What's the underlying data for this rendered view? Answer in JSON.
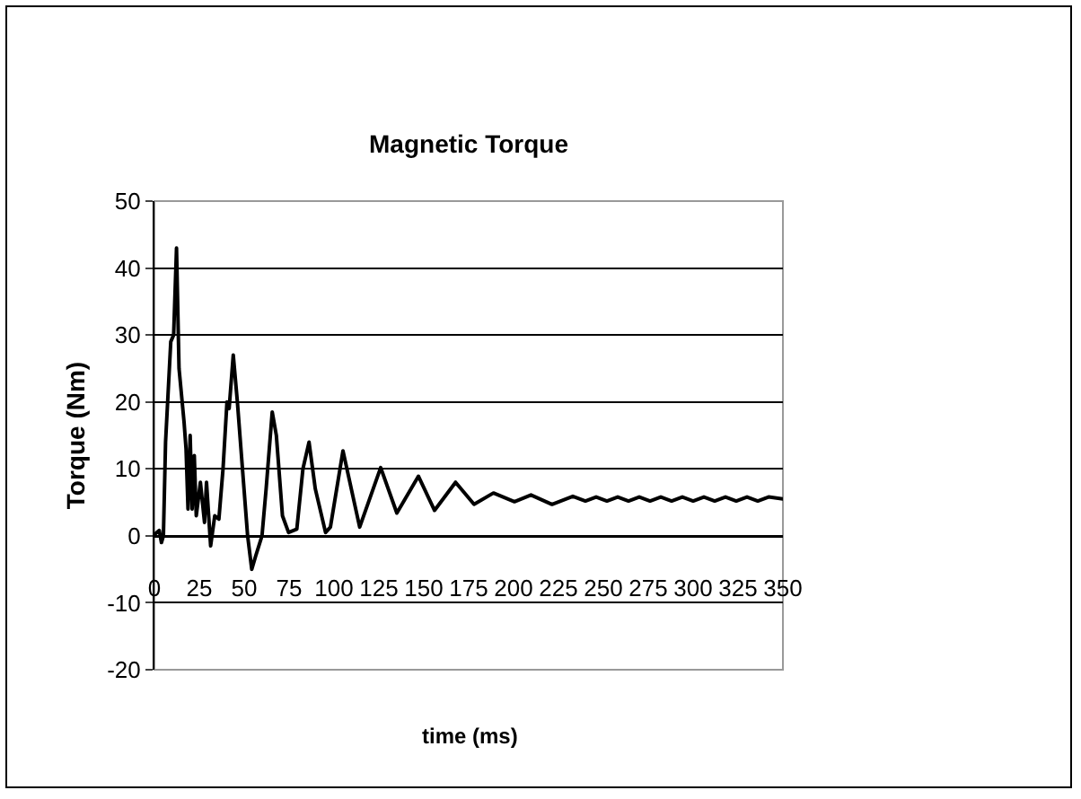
{
  "chart_data": {
    "type": "line",
    "title": "Magnetic Torque",
    "xlabel": "time (ms)",
    "ylabel": "Torque (Nm)",
    "xlim": [
      0,
      350
    ],
    "xticks": [
      0,
      25,
      50,
      75,
      100,
      125,
      150,
      175,
      200,
      225,
      250,
      275,
      300,
      325,
      350
    ],
    "ylim": [
      -20,
      50
    ],
    "yticks": [
      -20,
      -10,
      0,
      10,
      20,
      30,
      40,
      50
    ],
    "grid": "y",
    "marker": "none",
    "line_style": "solid",
    "series": [
      {
        "color": "#000000",
        "x": [
          0,
          2.7,
          3.9,
          5,
          6.2,
          9.1,
          10.7,
          12.3,
          13.7,
          16.5,
          17.6,
          18.7,
          19.9,
          21,
          22.2,
          23.3,
          25.6,
          27.9,
          29,
          31.3,
          33.6,
          35.9,
          38.2,
          40.4,
          41.6,
          43.9,
          46.2,
          49.6,
          51.9,
          54.2,
          56.4,
          59.9,
          62.2,
          65.6,
          67.9,
          71.3,
          74.7,
          79.3,
          82.7,
          86.1,
          89.6,
          95.3,
          98,
          105,
          114.3,
          126,
          135,
          147,
          156,
          167.7,
          178,
          188.8,
          200.5,
          209.7,
          221.4,
          233,
          240,
          246,
          252,
          258,
          264,
          270,
          276,
          282,
          288,
          294,
          300,
          306,
          312,
          318,
          324,
          330,
          336,
          342,
          350
        ],
        "values": [
          0.2,
          0.8,
          -1,
          0,
          14,
          29,
          30,
          43,
          25,
          17,
          13,
          4,
          15,
          4,
          12,
          3,
          8,
          2,
          8,
          -1.5,
          3,
          2.5,
          10,
          20,
          19,
          27,
          20,
          8,
          0,
          -5,
          -3,
          0,
          7,
          18.5,
          15,
          3,
          0.5,
          1,
          10,
          14,
          7,
          0.5,
          1.3,
          12.7,
          1.3,
          10.2,
          3.4,
          8.9,
          3.8,
          8,
          4.7,
          6.4,
          5.1,
          6.1,
          4.7,
          5.9,
          5.2,
          5.8,
          5.2,
          5.8,
          5.2,
          5.8,
          5.2,
          5.8,
          5.2,
          5.8,
          5.2,
          5.8,
          5.2,
          5.8,
          5.2,
          5.8,
          5.2,
          5.8,
          5.5
        ]
      }
    ]
  }
}
